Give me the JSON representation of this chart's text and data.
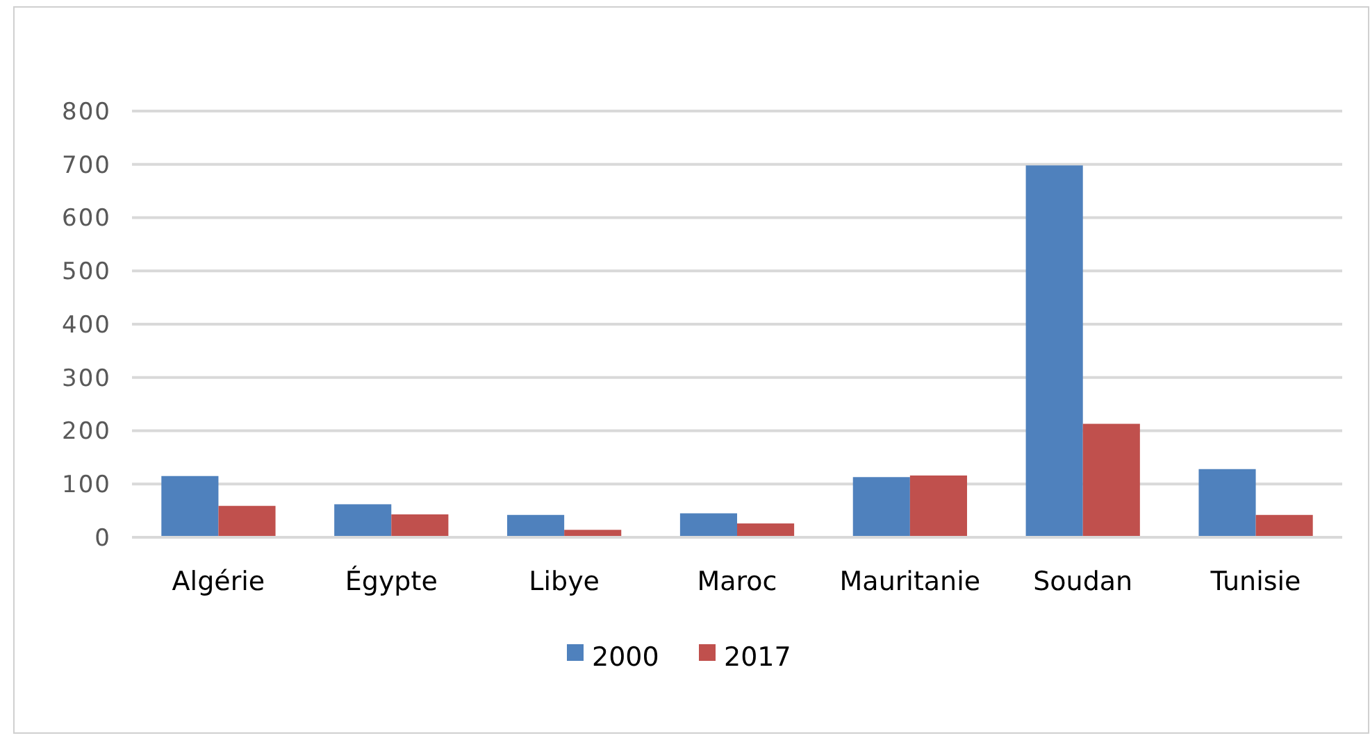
{
  "chart_data": {
    "type": "bar",
    "categories": [
      "Algérie",
      "Égypte",
      "Libye",
      "Maroc",
      "Mauritanie",
      "Soudan",
      "Tunisie"
    ],
    "series": [
      {
        "name": "2000",
        "color": "#4f81bd",
        "values": [
          115,
          62,
          42,
          45,
          113,
          698,
          128
        ]
      },
      {
        "name": "2017",
        "color": "#c0504d",
        "values": [
          59,
          43,
          14,
          26,
          116,
          213,
          42
        ]
      }
    ],
    "ylim": [
      0,
      800
    ],
    "yticks": [
      0,
      100,
      200,
      300,
      400,
      500,
      600,
      700,
      800
    ],
    "grid": "y",
    "legend": "bottom"
  }
}
